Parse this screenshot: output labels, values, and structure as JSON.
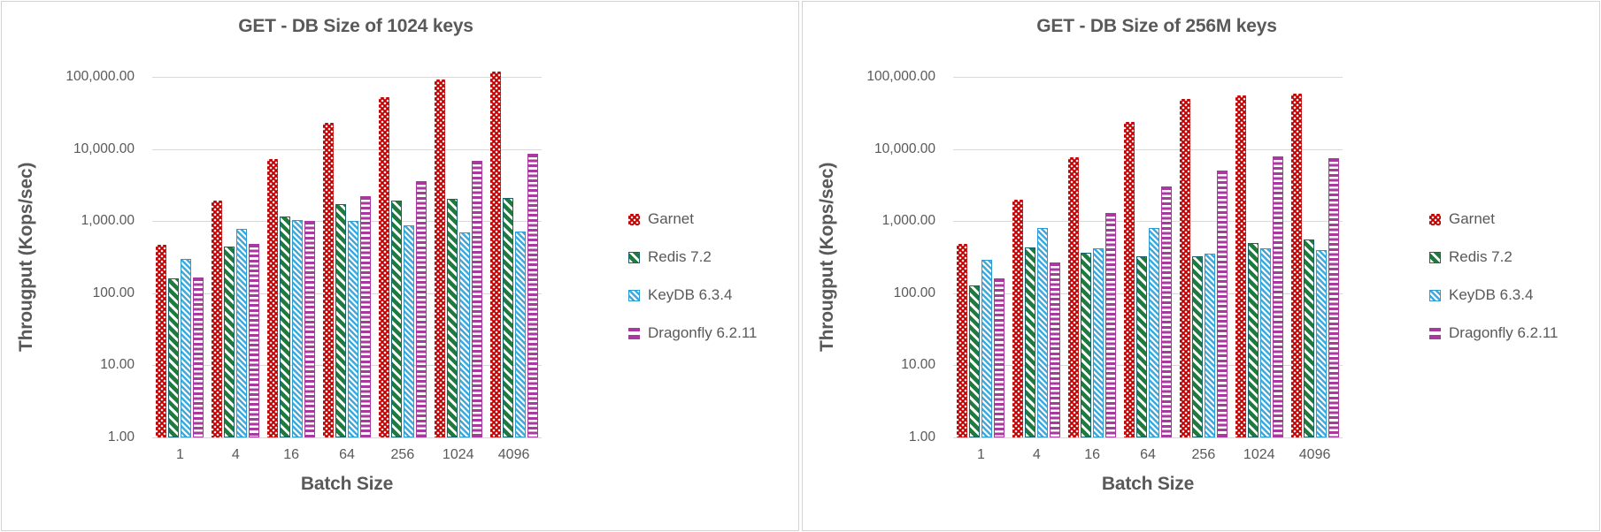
{
  "colors": {
    "garnet": "#C00000",
    "redis_stripe": "#1F7A3D",
    "redis_border": "#17616B",
    "keydb_stripe": "#3FA9DC",
    "keydb_border": "#2C9BD4",
    "dragonfly": "#A8399F",
    "text_gray": "#595959",
    "grid_gray": "#D9D9D9"
  },
  "chart_data": [
    {
      "type": "bar",
      "title": "GET - DB Size of 1024 keys",
      "xlabel": "Batch Size",
      "ylabel": "Througput (Kops/sec)",
      "y_scale": "log",
      "ylim": [
        1,
        100000
      ],
      "grid": true,
      "legend_position": "right",
      "y_ticks": [
        "100,000.00",
        "10,000.00",
        "1,000.00",
        "100.00",
        "10.00",
        "1.00"
      ],
      "categories": [
        "1",
        "4",
        "16",
        "64",
        "256",
        "1024",
        "4096"
      ],
      "series": [
        {
          "name": "Garnet",
          "pattern": "red-dots",
          "values": [
            470,
            1900,
            7200,
            23000,
            53000,
            93000,
            118000
          ]
        },
        {
          "name": "Redis 7.2",
          "pattern": "green-diagonal-wide",
          "values": [
            160,
            450,
            1150,
            1700,
            1900,
            2050,
            2100
          ]
        },
        {
          "name": "KeyDB 6.3.4",
          "pattern": "blue-diagonal-thin",
          "values": [
            300,
            790,
            1030,
            1010,
            870,
            700,
            720
          ]
        },
        {
          "name": "Dragonfly 6.2.11",
          "pattern": "magenta-horizontal",
          "values": [
            165,
            480,
            1020,
            2200,
            3600,
            6800,
            8500
          ]
        }
      ]
    },
    {
      "type": "bar",
      "title": "GET - DB Size of 256M keys",
      "xlabel": "Batch Size",
      "ylabel": "Througput (Kops/sec)",
      "y_scale": "log",
      "ylim": [
        1,
        100000
      ],
      "grid": true,
      "legend_position": "right",
      "y_ticks": [
        "100,000.00",
        "10,000.00",
        "1,000.00",
        "100.00",
        "10.00",
        "1.00"
      ],
      "categories": [
        "1",
        "4",
        "16",
        "64",
        "256",
        "1024",
        "4096"
      ],
      "series": [
        {
          "name": "Garnet",
          "pattern": "red-dots",
          "values": [
            480,
            2000,
            7600,
            24000,
            50000,
            55000,
            58000
          ]
        },
        {
          "name": "Redis 7.2",
          "pattern": "green-diagonal-wide",
          "values": [
            130,
            430,
            360,
            330,
            330,
            500,
            550
          ]
        },
        {
          "name": "KeyDB 6.3.4",
          "pattern": "blue-diagonal-thin",
          "values": [
            290,
            800,
            420,
            800,
            350,
            420,
            400
          ]
        },
        {
          "name": "Dragonfly 6.2.11",
          "pattern": "magenta-horizontal",
          "values": [
            160,
            270,
            1300,
            3000,
            5000,
            8000,
            7500
          ]
        }
      ]
    }
  ]
}
